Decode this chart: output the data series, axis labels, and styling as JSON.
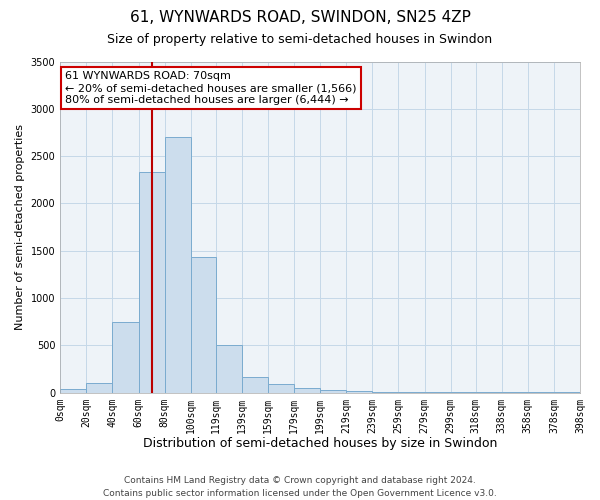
{
  "title": "61, WYNWARDS ROAD, SWINDON, SN25 4ZP",
  "subtitle": "Size of property relative to semi-detached houses in Swindon",
  "xlabel": "Distribution of semi-detached houses by size in Swindon",
  "ylabel": "Number of semi-detached properties",
  "bin_edges": [
    0,
    20,
    40,
    60,
    80,
    100,
    119,
    139,
    159,
    179,
    199,
    219,
    239,
    259,
    279,
    299,
    318,
    338,
    358,
    378,
    398
  ],
  "bin_counts": [
    40,
    100,
    750,
    2330,
    2700,
    1430,
    500,
    170,
    90,
    50,
    30,
    20,
    5,
    5,
    5,
    5,
    5,
    5,
    5,
    5
  ],
  "bar_facecolor": "#ccdded",
  "bar_edgecolor": "#7aabcf",
  "bar_linewidth": 0.7,
  "grid_color": "#c5d8e8",
  "property_line_x": 70,
  "property_line_color": "#bb0000",
  "property_line_linewidth": 1.5,
  "annotation_box_edgecolor": "#cc0000",
  "annotation_box_facecolor": "#ffffff",
  "annotation_line1": "61 WYNWARDS ROAD: 70sqm",
  "annotation_line2": "← 20% of semi-detached houses are smaller (1,566)",
  "annotation_line3": "80% of semi-detached houses are larger (6,444) →",
  "ylim": [
    0,
    3500
  ],
  "yticks": [
    0,
    500,
    1000,
    1500,
    2000,
    2500,
    3000,
    3500
  ],
  "xtick_labels": [
    "0sqm",
    "20sqm",
    "40sqm",
    "60sqm",
    "80sqm",
    "100sqm",
    "119sqm",
    "139sqm",
    "159sqm",
    "179sqm",
    "199sqm",
    "219sqm",
    "239sqm",
    "259sqm",
    "279sqm",
    "299sqm",
    "318sqm",
    "338sqm",
    "358sqm",
    "378sqm",
    "398sqm"
  ],
  "background_color": "#ffffff",
  "plot_bg_color": "#eef3f8",
  "footer_line1": "Contains HM Land Registry data © Crown copyright and database right 2024.",
  "footer_line2": "Contains public sector information licensed under the Open Government Licence v3.0.",
  "title_fontsize": 11,
  "subtitle_fontsize": 9,
  "xlabel_fontsize": 9,
  "ylabel_fontsize": 8,
  "tick_fontsize": 7,
  "footer_fontsize": 6.5,
  "annot_fontsize": 8
}
